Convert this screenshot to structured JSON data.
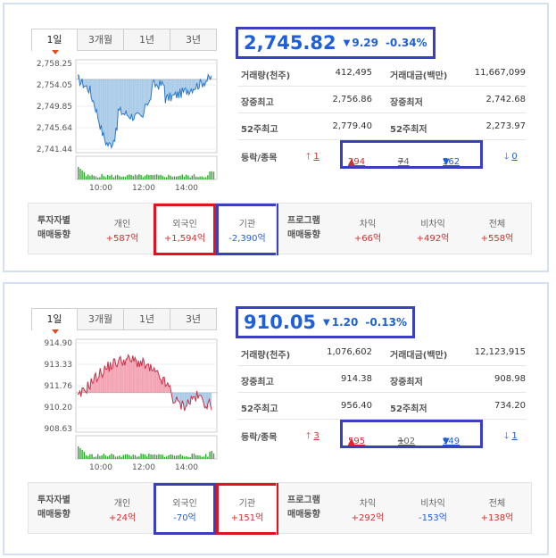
{
  "panels": [
    {
      "tabs": [
        "1일",
        "3개월",
        "1년",
        "3년"
      ],
      "active_tab": 0,
      "index_value": "2,745.82",
      "change_arrow": "▼",
      "change_value": "9.29",
      "change_pct": "-0.34%",
      "stats": [
        {
          "label1": "거래량(천주)",
          "value1": "412,495",
          "label2": "거래대금(백만)",
          "value2": "11,667,099"
        },
        {
          "label1": "장중최고",
          "value1": "2,756.86",
          "label2": "장중최저",
          "value2": "2,742.68"
        },
        {
          "label1": "52주최고",
          "value1": "2,779.40",
          "label2": "52주최저",
          "value2": "2,273.97"
        }
      ],
      "updown": {
        "label": "등락/종목",
        "upper_limit": "1",
        "up": "294",
        "flat": "74",
        "down": "562",
        "lower_limit": "0"
      },
      "investor_title": [
        "투자자별",
        "매매동향"
      ],
      "investors": [
        {
          "name": "개인",
          "value": "+587억",
          "color": "red"
        },
        {
          "name": "외국인",
          "value": "+1,594억",
          "color": "red"
        },
        {
          "name": "기관",
          "value": "-2,390억",
          "color": "blue"
        }
      ],
      "program_title": [
        "프로그램",
        "매매동향"
      ],
      "program": [
        {
          "name": "차익",
          "value": "+66억",
          "color": "red"
        },
        {
          "name": "비차익",
          "value": "+492억",
          "color": "red"
        },
        {
          "name": "전체",
          "value": "+558억",
          "color": "red"
        }
      ],
      "chart_data": {
        "type": "area",
        "yticks": [
          "2,758.25",
          "2,754.05",
          "2,749.85",
          "2,745.64",
          "2,741.44"
        ],
        "ylim": [
          2741.44,
          2758.25
        ],
        "baseline": 2755.11,
        "xticks": [
          "10:00",
          "12:00",
          "14:00"
        ]
      }
    },
    {
      "tabs": [
        "1일",
        "3개월",
        "1년",
        "3년"
      ],
      "active_tab": 0,
      "index_value": "910.05",
      "change_arrow": "▼",
      "change_value": "1.20",
      "change_pct": "-0.13%",
      "stats": [
        {
          "label1": "거래량(천주)",
          "value1": "1,076,602",
          "label2": "거래대금(백만)",
          "value2": "12,123,915"
        },
        {
          "label1": "장중최고",
          "value1": "914.38",
          "label2": "장중최저",
          "value2": "908.98"
        },
        {
          "label1": "52주최고",
          "value1": "956.40",
          "label2": "52주최저",
          "value2": "734.20"
        }
      ],
      "updown": {
        "label": "등락/종목",
        "upper_limit": "3",
        "up": "595",
        "flat": "102",
        "down": "949",
        "lower_limit": "1"
      },
      "investor_title": [
        "투자자별",
        "매매동향"
      ],
      "investors": [
        {
          "name": "개인",
          "value": "+24억",
          "color": "red"
        },
        {
          "name": "외국인",
          "value": "-70억",
          "color": "blue"
        },
        {
          "name": "기관",
          "value": "+151억",
          "color": "red"
        }
      ],
      "program_title": [
        "프로그램",
        "매매동향"
      ],
      "program": [
        {
          "name": "차익",
          "value": "+292억",
          "color": "red"
        },
        {
          "name": "비차익",
          "value": "-153억",
          "color": "blue"
        },
        {
          "name": "전체",
          "value": "+138억",
          "color": "red"
        }
      ],
      "chart_data": {
        "type": "area",
        "yticks": [
          "914.90",
          "913.33",
          "911.76",
          "910.20",
          "908.63"
        ],
        "ylim": [
          908.63,
          914.9
        ],
        "baseline": 911.25,
        "xticks": [
          "10:00",
          "12:00",
          "14:00"
        ]
      }
    }
  ],
  "colors": {
    "up": "#d32f2f",
    "down": "#1f5fd8",
    "highlight_blue": "#3a3fbf",
    "highlight_red": "#e0141e",
    "area_up": "#f2a3b3",
    "area_down": "#a9cbe8",
    "volume": "#2eaa2e"
  }
}
